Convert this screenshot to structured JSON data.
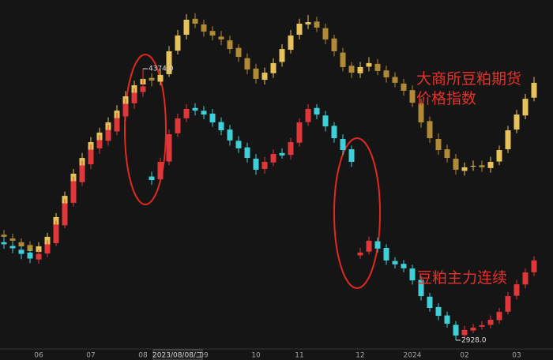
{
  "chart_data": {
    "type": "candlestick",
    "categories": [
      null,
      null,
      null,
      null,
      "06",
      null,
      null,
      null,
      null,
      null,
      "07",
      null,
      null,
      null,
      null,
      null,
      "08",
      null,
      null,
      null,
      null,
      null,
      null,
      "09",
      null,
      null,
      null,
      null,
      null,
      "10",
      null,
      null,
      null,
      null,
      "11",
      null,
      null,
      null,
      null,
      null,
      null,
      "12",
      null,
      null,
      null,
      null,
      null,
      "2024",
      null,
      null,
      null,
      null,
      null,
      "02",
      null,
      null,
      null,
      null,
      null,
      "03",
      null,
      null
    ],
    "crosshair_label": "2023/08/08/二",
    "ylim": [
      2890,
      4740
    ],
    "series": [
      {
        "name": "大商所豆粕期货价格指数",
        "up_color": "#e6c25a",
        "down_color": "#b08a34",
        "values": [
          [
            3490,
            3515,
            3455,
            3479
          ],
          [
            3470,
            3495,
            3432,
            3458
          ],
          [
            3450,
            3470,
            3400,
            3428
          ],
          [
            3435,
            3455,
            3378,
            3403
          ],
          [
            3398,
            3450,
            3375,
            3428
          ],
          [
            3430,
            3500,
            3410,
            3479
          ],
          [
            3485,
            3605,
            3470,
            3584
          ],
          [
            3580,
            3720,
            3565,
            3697
          ],
          [
            3700,
            3840,
            3680,
            3815
          ],
          [
            3810,
            3925,
            3790,
            3899
          ],
          [
            3905,
            4010,
            3880,
            3983
          ],
          [
            3990,
            4060,
            3960,
            4034
          ],
          [
            4030,
            4115,
            4005,
            4088
          ],
          [
            4080,
            4180,
            4060,
            4151
          ],
          [
            4160,
            4255,
            4135,
            4227
          ],
          [
            4230,
            4310,
            4200,
            4286
          ],
          [
            4290,
            4350,
            4265,
            4320
          ],
          [
            4325,
            4350,
            4280,
            4311
          ],
          [
            4305,
            4370,
            4285,
            4341
          ],
          [
            4345,
            4495,
            4330,
            4467
          ],
          [
            4470,
            4580,
            4450,
            4551
          ],
          [
            4555,
            4665,
            4530,
            4635
          ],
          [
            4640,
            4670,
            4590,
            4614
          ],
          [
            4610,
            4635,
            4545,
            4572
          ],
          [
            4575,
            4600,
            4525,
            4551
          ],
          [
            4545,
            4575,
            4500,
            4530
          ],
          [
            4525,
            4550,
            4455,
            4479
          ],
          [
            4485,
            4505,
            4410,
            4437
          ],
          [
            4430,
            4455,
            4345,
            4370
          ],
          [
            4375,
            4400,
            4295,
            4320
          ],
          [
            4315,
            4380,
            4290,
            4353
          ],
          [
            4350,
            4430,
            4325,
            4404
          ],
          [
            4410,
            4505,
            4385,
            4479
          ],
          [
            4475,
            4580,
            4455,
            4551
          ],
          [
            4555,
            4640,
            4530,
            4614
          ],
          [
            4610,
            4660,
            4585,
            4622
          ],
          [
            4625,
            4650,
            4570,
            4593
          ],
          [
            4590,
            4615,
            4505,
            4530
          ],
          [
            4535,
            4555,
            4440,
            4467
          ],
          [
            4460,
            4485,
            4360,
            4383
          ],
          [
            4390,
            4410,
            4325,
            4353
          ],
          [
            4350,
            4410,
            4325,
            4383
          ],
          [
            4385,
            4435,
            4360,
            4404
          ],
          [
            4400,
            4425,
            4340,
            4362
          ],
          [
            4365,
            4390,
            4300,
            4328
          ],
          [
            4330,
            4355,
            4275,
            4299
          ],
          [
            4295,
            4320,
            4230,
            4257
          ],
          [
            4260,
            4285,
            4170,
            4193
          ],
          [
            4190,
            4215,
            4060,
            4088
          ],
          [
            4095,
            4120,
            3980,
            4004
          ],
          [
            4000,
            4030,
            3915,
            3941
          ],
          [
            3945,
            3970,
            3875,
            3899
          ],
          [
            3895,
            3920,
            3810,
            3836
          ],
          [
            3830,
            3875,
            3805,
            3849
          ],
          [
            3855,
            3885,
            3830,
            3857
          ],
          [
            3860,
            3885,
            3825,
            3849
          ],
          [
            3845,
            3905,
            3820,
            3878
          ],
          [
            3880,
            3965,
            3860,
            3941
          ],
          [
            3945,
            4070,
            3925,
            4046
          ],
          [
            4050,
            4155,
            4030,
            4130
          ],
          [
            4125,
            4240,
            4105,
            4214
          ],
          [
            4220,
            4330,
            4200,
            4299
          ]
        ]
      },
      {
        "name": "豆粕主力连续",
        "up_color": "#e0383a",
        "down_color": "#3ecfd8",
        "values": [
          [
            3450,
            3475,
            3415,
            3439
          ],
          [
            3430,
            3455,
            3392,
            3418
          ],
          [
            3410,
            3430,
            3360,
            3388
          ],
          [
            3395,
            3415,
            3338,
            3363
          ],
          [
            3358,
            3410,
            3335,
            3388
          ],
          [
            3390,
            3460,
            3370,
            3439
          ],
          [
            3445,
            3565,
            3430,
            3544
          ],
          [
            3540,
            3680,
            3525,
            3657
          ],
          [
            3660,
            3800,
            3640,
            3775
          ],
          [
            3770,
            3885,
            3750,
            3859
          ],
          [
            3865,
            3970,
            3840,
            3943
          ],
          [
            3950,
            4020,
            3920,
            3994
          ],
          [
            3990,
            4075,
            3965,
            4048
          ],
          [
            4040,
            4140,
            4020,
            4111
          ],
          [
            4120,
            4215,
            4095,
            4187
          ],
          [
            4190,
            4270,
            4160,
            4246
          ],
          [
            4250,
            4374,
            4225,
            4280
          ],
          [
            3800,
            3825,
            3755,
            3781
          ],
          [
            3785,
            3900,
            3770,
            3878
          ],
          [
            3880,
            4050,
            3860,
            4025
          ],
          [
            4030,
            4135,
            4010,
            4109
          ],
          [
            4110,
            4185,
            4090,
            4160
          ],
          [
            4165,
            4190,
            4125,
            4151
          ],
          [
            4150,
            4175,
            4105,
            4130
          ],
          [
            4135,
            4160,
            4065,
            4088
          ],
          [
            4090,
            4115,
            4020,
            4046
          ],
          [
            4050,
            4075,
            3965,
            3992
          ],
          [
            3990,
            4015,
            3925,
            3950
          ],
          [
            3955,
            3980,
            3875,
            3899
          ],
          [
            3895,
            3920,
            3810,
            3836
          ],
          [
            3840,
            3905,
            3815,
            3878
          ],
          [
            3875,
            3945,
            3855,
            3920
          ],
          [
            3925,
            3950,
            3895,
            3912
          ],
          [
            3915,
            4005,
            3890,
            3983
          ],
          [
            3980,
            4110,
            3960,
            4088
          ],
          [
            4090,
            4185,
            4070,
            4160
          ],
          [
            4165,
            4185,
            4105,
            4130
          ],
          [
            4125,
            4150,
            4040,
            4067
          ],
          [
            4070,
            4090,
            3980,
            4004
          ],
          [
            4000,
            4025,
            3915,
            3941
          ],
          [
            3945,
            3965,
            3850,
            3878
          ],
          [
            3380,
            3420,
            3360,
            3395
          ],
          [
            3400,
            3480,
            3385,
            3458
          ],
          [
            3455,
            3475,
            3395,
            3416
          ],
          [
            3420,
            3440,
            3330,
            3353
          ],
          [
            3350,
            3370,
            3310,
            3332
          ],
          [
            3335,
            3355,
            3290,
            3311
          ],
          [
            3310,
            3330,
            3225,
            3247
          ],
          [
            3250,
            3270,
            3140,
            3163
          ],
          [
            3160,
            3180,
            3080,
            3100
          ],
          [
            3105,
            3125,
            3035,
            3058
          ],
          [
            3060,
            3080,
            2995,
            3016
          ],
          [
            3010,
            3030,
            2928,
            2953
          ],
          [
            2955,
            3005,
            2940,
            2983
          ],
          [
            2980,
            3015,
            2965,
            2995
          ],
          [
            3000,
            3030,
            2985,
            3008
          ],
          [
            3010,
            3060,
            2990,
            3037
          ],
          [
            3035,
            3100,
            3015,
            3079
          ],
          [
            3080,
            3185,
            3065,
            3163
          ],
          [
            3165,
            3250,
            3145,
            3226
          ],
          [
            3225,
            3310,
            3205,
            3289
          ],
          [
            3290,
            3375,
            3270,
            3353
          ]
        ]
      }
    ],
    "annotations": [
      {
        "value": 4374,
        "label": "4374.0"
      },
      {
        "value": 2928,
        "label": "2928.0"
      }
    ]
  }
}
